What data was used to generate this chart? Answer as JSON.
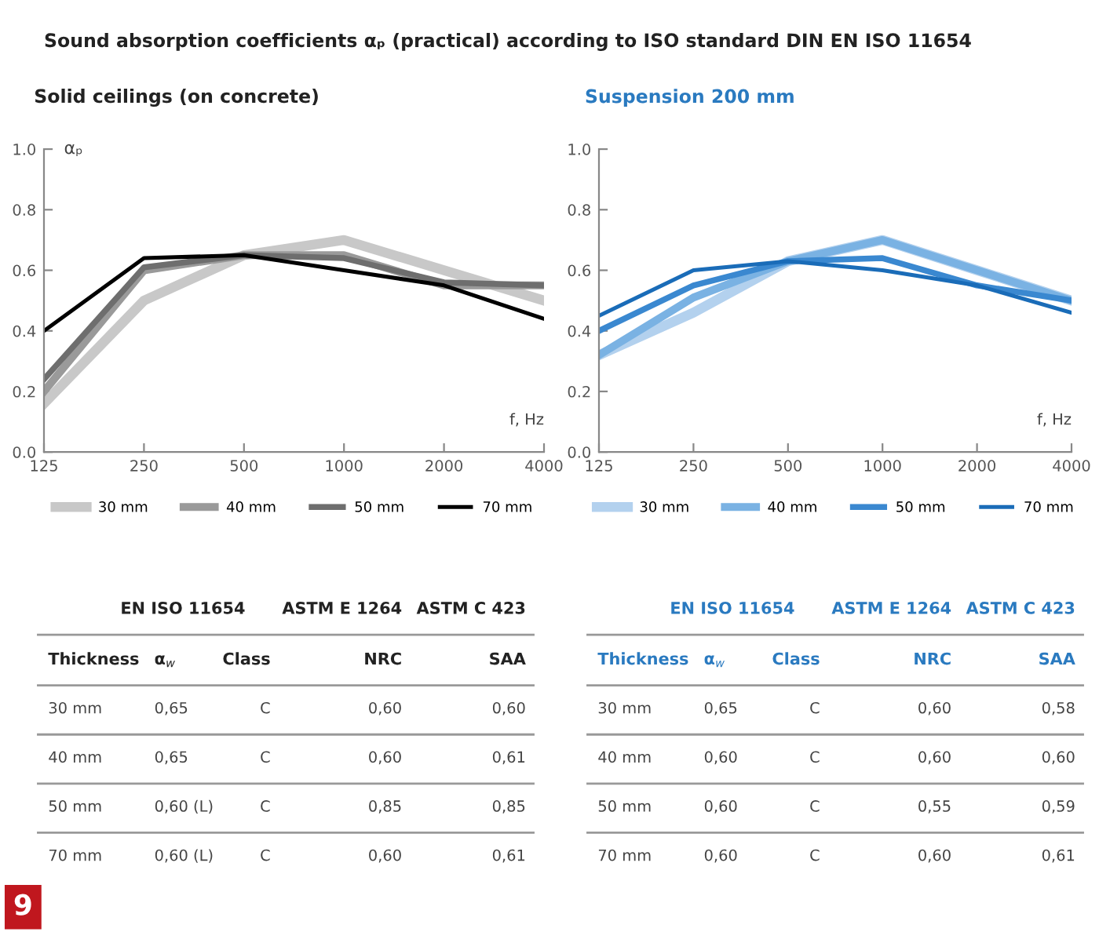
{
  "chart_data": [
    {
      "type": "line",
      "title": "Sound absorption coefficients αₚ (practical) according to ISO standard DIN EN ISO 11654",
      "subtitle": "Solid ceilings (on concrete)",
      "xlabel": "f, Hz",
      "ylabel": "αₚ",
      "categories": [
        "125",
        "250",
        "500",
        "1000",
        "2000",
        "4000"
      ],
      "ylim": [
        0,
        1
      ],
      "yticks": [
        {
          "value": 0,
          "label": "0.0"
        },
        {
          "value": 0.2,
          "label": "0.2"
        },
        {
          "value": 0.4,
          "label": "0.4"
        },
        {
          "value": 0.6,
          "label": "0.6"
        },
        {
          "value": 0.8,
          "label": "0.8"
        },
        {
          "value": 1,
          "label": "1.0"
        }
      ],
      "legend": "bottom",
      "marker": "none",
      "line_style": "solid",
      "annotations": [
        "9"
      ],
      "series": [
        {
          "name": "30 mm",
          "color": "#c8c8c8",
          "values": [
            0.16,
            0.5,
            0.65,
            0.7,
            0.6,
            0.5
          ]
        },
        {
          "name": "40 mm",
          "color": "#9a9a9a",
          "values": [
            0.2,
            0.6,
            0.65,
            0.65,
            0.55,
            0.55
          ]
        },
        {
          "name": "50 mm",
          "color": "#6e6e6e",
          "values": [
            0.24,
            0.61,
            0.65,
            0.64,
            0.56,
            0.55
          ]
        },
        {
          "name": "70 mm",
          "color": "#000000",
          "values": [
            0.4,
            0.64,
            0.65,
            0.6,
            0.55,
            0.44
          ]
        }
      ]
    },
    {
      "type": "line",
      "subtitle": "Suspension 200 mm",
      "xlabel": "f, Hz",
      "categories": [
        "125",
        "250",
        "500",
        "1000",
        "2000",
        "4000"
      ],
      "ylim": [
        0,
        1
      ],
      "yticks": [
        {
          "value": 0,
          "label": "0.0"
        },
        {
          "value": 0.2,
          "label": "0.2"
        },
        {
          "value": 0.4,
          "label": "0.4"
        },
        {
          "value": 0.6,
          "label": "0.6"
        },
        {
          "value": 0.8,
          "label": "0.8"
        },
        {
          "value": 1,
          "label": "1.0"
        }
      ],
      "legend": "bottom",
      "marker": "none",
      "line_style": "solid",
      "series": [
        {
          "name": "30 mm",
          "color": "#b3d1ee",
          "values": [
            0.32,
            0.46,
            0.63,
            0.7,
            0.6,
            0.5
          ]
        },
        {
          "name": "40 mm",
          "color": "#7ab2e3",
          "values": [
            0.32,
            0.51,
            0.63,
            0.7,
            0.6,
            0.5
          ]
        },
        {
          "name": "50 mm",
          "color": "#3a88d0",
          "values": [
            0.4,
            0.55,
            0.63,
            0.64,
            0.55,
            0.5
          ]
        },
        {
          "name": "70 mm",
          "color": "#1a6cb8",
          "values": [
            0.45,
            0.6,
            0.63,
            0.6,
            0.55,
            0.46
          ]
        }
      ]
    },
    {
      "type": "other",
      "annotations": [
        "EN ISO 11654",
        "ASTM E 1264",
        "ASTM C 423",
        "Thickness",
        "α$_{w}$",
        "Class",
        "NRC",
        "SAA",
        "30 mm",
        "0,65",
        "C",
        "0,60",
        "0,60",
        "40 mm",
        "0,65",
        "C",
        "0,60",
        "0,61",
        "50 mm",
        "0,60 (L)",
        "C",
        "0,85",
        "0,85",
        "70 mm",
        "0,60 (L)",
        "C",
        "0,60",
        "0,61"
      ]
    },
    {
      "type": "other",
      "annotations": [
        "EN ISO 11654",
        "ASTM E 1264",
        "ASTM C 423",
        "Thickness",
        "α$_{w}$",
        "Class",
        "NRC",
        "SAA",
        "30 mm",
        "0,65",
        "C",
        "0,60",
        "0,58",
        "40 mm",
        "0,60",
        "C",
        "0,60",
        "0,60",
        "50 mm",
        "0,60",
        "C",
        "0,55",
        "0,59",
        "70 mm",
        "0,60",
        "C",
        "0,60",
        "0,61"
      ]
    }
  ]
}
